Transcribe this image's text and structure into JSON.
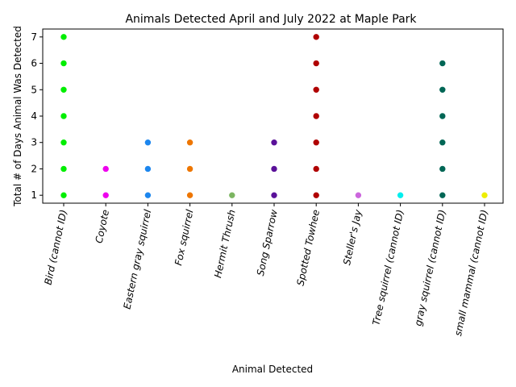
{
  "chart_data": {
    "type": "scatter",
    "title": "Animals Detected April and July 2022 at Maple Park",
    "xlabel": "Animal Detected",
    "ylabel": "Total # of Days Animal Was Detected",
    "ylim": [
      0.7,
      7.3
    ],
    "yticks": [
      1,
      2,
      3,
      4,
      5,
      6,
      7
    ],
    "grid": false,
    "legend": "none",
    "categories": [
      "Bird (cannot ID)",
      "Coyote",
      "Eastern gray squirrel",
      "Fox squirrel",
      "Hermit Thrush",
      "Song Sparrow",
      "Spotted Towhee",
      "Steller's Jay",
      "Tree squirrel (cannot ID)",
      "gray squirrel (cannot ID)",
      "small mammal (cannot ID)"
    ],
    "series": [
      {
        "category": "Bird (cannot ID)",
        "color": "#00ee00",
        "values": [
          1,
          2,
          3,
          4,
          5,
          6,
          7
        ]
      },
      {
        "category": "Coyote",
        "color": "#ee00ee",
        "values": [
          1,
          2
        ]
      },
      {
        "category": "Eastern gray squirrel",
        "color": "#1c86ee",
        "values": [
          1,
          2,
          3
        ]
      },
      {
        "category": "Fox squirrel",
        "color": "#ee7600",
        "values": [
          1,
          2,
          3
        ]
      },
      {
        "category": "Hermit Thrush",
        "color": "#7cb561",
        "values": [
          1
        ]
      },
      {
        "category": "Song Sparrow",
        "color": "#5a1199",
        "values": [
          1,
          2,
          3
        ]
      },
      {
        "category": "Spotted Towhee",
        "color": "#b00000",
        "values": [
          1,
          2,
          3,
          4,
          5,
          6,
          7
        ]
      },
      {
        "category": "Steller's Jay",
        "color": "#cc66dd",
        "values": [
          1
        ]
      },
      {
        "category": "Tree squirrel (cannot ID)",
        "color": "#00eeee",
        "values": [
          1
        ]
      },
      {
        "category": "gray squirrel (cannot ID)",
        "color": "#006655",
        "values": [
          1,
          2,
          3,
          4,
          5,
          6
        ]
      },
      {
        "category": "small mammal (cannot ID)",
        "color": "#eeee00",
        "values": [
          1
        ]
      }
    ]
  }
}
